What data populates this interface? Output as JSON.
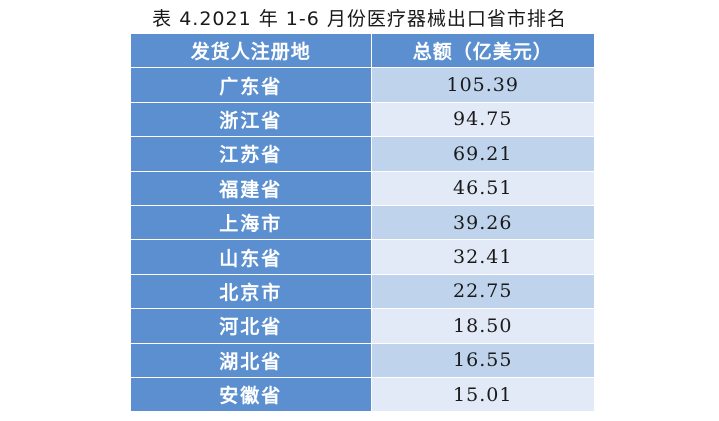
{
  "caption": "表 4.2021 年 1-6 月份医疗器械出口省市排名",
  "table": {
    "headers": [
      "发货人注册地",
      "总额（亿美元）"
    ],
    "rows": [
      {
        "region": "广东省",
        "value": "105.39"
      },
      {
        "region": "浙江省",
        "value": "94.75"
      },
      {
        "region": "江苏省",
        "value": "69.21"
      },
      {
        "region": "福建省",
        "value": "46.51"
      },
      {
        "region": "上海市",
        "value": "39.26"
      },
      {
        "region": "山东省",
        "value": "32.41"
      },
      {
        "region": "北京市",
        "value": "22.75"
      },
      {
        "region": "河北省",
        "value": "18.50"
      },
      {
        "region": "湖北省",
        "value": "16.55"
      },
      {
        "region": "安徽省",
        "value": "15.01"
      }
    ]
  },
  "colors": {
    "header_bg": "#5b8fcf",
    "row_odd_bg": "#bfd4ec",
    "row_even_bg": "#e1eaf6"
  }
}
